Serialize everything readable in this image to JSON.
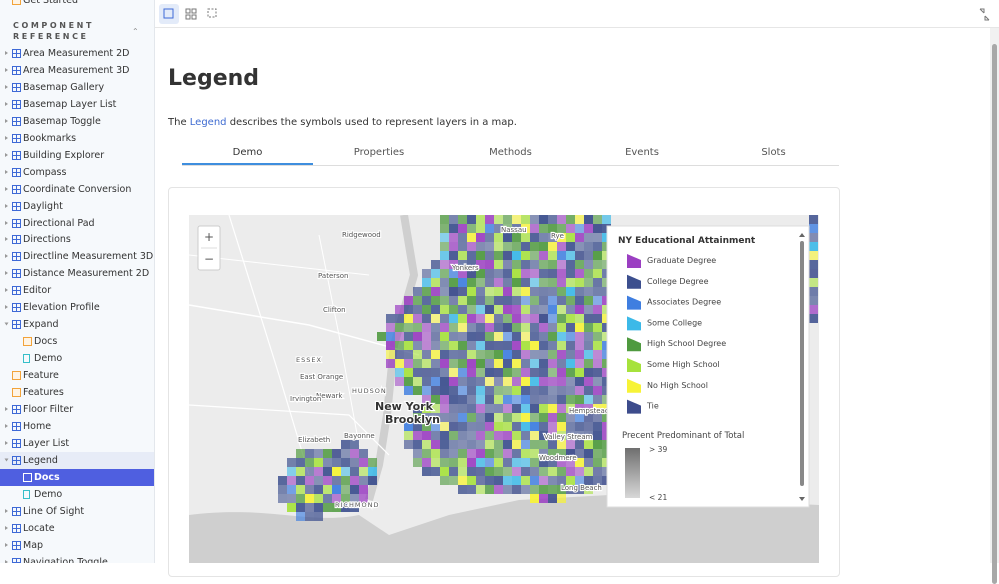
{
  "sidebar": {
    "partial_item": "Get Started",
    "section_title": "COMPONENT REFERENCE",
    "items": [
      {
        "label": "Area Measurement 2D",
        "kind": "component",
        "level": 0
      },
      {
        "label": "Area Measurement 3D",
        "kind": "component",
        "level": 0
      },
      {
        "label": "Basemap Gallery",
        "kind": "component",
        "level": 0
      },
      {
        "label": "Basemap Layer List",
        "kind": "component",
        "level": 0
      },
      {
        "label": "Basemap Toggle",
        "kind": "component",
        "level": 0
      },
      {
        "label": "Bookmarks",
        "kind": "component",
        "level": 0
      },
      {
        "label": "Building Explorer",
        "kind": "component",
        "level": 0
      },
      {
        "label": "Compass",
        "kind": "component",
        "level": 0
      },
      {
        "label": "Coordinate Conversion",
        "kind": "component",
        "level": 0
      },
      {
        "label": "Daylight",
        "kind": "component",
        "level": 0
      },
      {
        "label": "Directional Pad",
        "kind": "component",
        "level": 0
      },
      {
        "label": "Directions",
        "kind": "component",
        "level": 0
      },
      {
        "label": "Directline Measurement 3D",
        "kind": "component",
        "level": 0
      },
      {
        "label": "Distance Measurement 2D",
        "kind": "component",
        "level": 0
      },
      {
        "label": "Editor",
        "kind": "component",
        "level": 0
      },
      {
        "label": "Elevation Profile",
        "kind": "component",
        "level": 0
      },
      {
        "label": "Expand",
        "kind": "component",
        "level": 0,
        "expanded": true
      },
      {
        "label": "Docs",
        "kind": "doc",
        "level": 1
      },
      {
        "label": "Demo",
        "kind": "story",
        "level": 1
      },
      {
        "label": "Feature",
        "kind": "doc",
        "level": 0
      },
      {
        "label": "Features",
        "kind": "doc",
        "level": 0
      },
      {
        "label": "Floor Filter",
        "kind": "component",
        "level": 0
      },
      {
        "label": "Home",
        "kind": "component",
        "level": 0
      },
      {
        "label": "Layer List",
        "kind": "component",
        "level": 0
      },
      {
        "label": "Legend",
        "kind": "component",
        "level": 0,
        "expanded": true
      },
      {
        "label": "Docs",
        "kind": "doc",
        "level": 1,
        "selected": true
      },
      {
        "label": "Demo",
        "kind": "story",
        "level": 1
      },
      {
        "label": "Line Of Sight",
        "kind": "component",
        "level": 0
      },
      {
        "label": "Locate",
        "kind": "component",
        "level": 0
      },
      {
        "label": "Map",
        "kind": "component",
        "level": 0
      },
      {
        "label": "Navigation Toggle",
        "kind": "component",
        "level": 0
      }
    ]
  },
  "page": {
    "title": "Legend",
    "description": {
      "prefix": "The ",
      "link": "Legend",
      "suffix": " describes the symbols used to represent layers in a map."
    },
    "tabs": [
      "Demo",
      "Properties",
      "Methods",
      "Events",
      "Slots"
    ],
    "active_tab": 0
  },
  "map": {
    "zoom_in": "+",
    "zoom_out": "−",
    "place_labels": [
      {
        "text": "Ridgewood",
        "style": "town"
      },
      {
        "text": "Paterson",
        "style": "town"
      },
      {
        "text": "Clifton",
        "style": "town"
      },
      {
        "text": "Yonkers",
        "style": "town"
      },
      {
        "text": "ESSEX",
        "style": "county"
      },
      {
        "text": "East Orange",
        "style": "town"
      },
      {
        "text": "Newark",
        "style": "town"
      },
      {
        "text": "Irvington",
        "style": "town"
      },
      {
        "text": "HUDSON",
        "style": "county"
      },
      {
        "text": "New York",
        "style": "city"
      },
      {
        "text": "Brooklyn",
        "style": "city"
      },
      {
        "text": "Elizabeth",
        "style": "town"
      },
      {
        "text": "Bayonne",
        "style": "town"
      },
      {
        "text": "Hempstead",
        "style": "town"
      },
      {
        "text": "Valley Stream",
        "style": "town"
      },
      {
        "text": "Woodmere",
        "style": "town"
      },
      {
        "text": "Long Beach",
        "style": "town"
      },
      {
        "text": "RICHMOND",
        "style": "county"
      },
      {
        "text": "Nassau",
        "style": "town"
      },
      {
        "text": "Rye",
        "style": "town"
      }
    ],
    "legend": {
      "title": "NY Educational Attainment",
      "items": [
        {
          "label": "Graduate Degree",
          "color": "#9b3fc2"
        },
        {
          "label": "College Degree",
          "color": "#3c4f8e"
        },
        {
          "label": "Associates Degree",
          "color": "#3f7ee0"
        },
        {
          "label": "Some College",
          "color": "#3cb9e8"
        },
        {
          "label": "High School Degree",
          "color": "#4f9a3f"
        },
        {
          "label": "Some High School",
          "color": "#a6e23c"
        },
        {
          "label": "No High School",
          "color": "#f7f337"
        },
        {
          "label": "Tie",
          "color": "#3d4c8c"
        }
      ],
      "size_title": "Precent Predominant of Total",
      "max_label": "> 39",
      "min_label": "< 21"
    }
  }
}
